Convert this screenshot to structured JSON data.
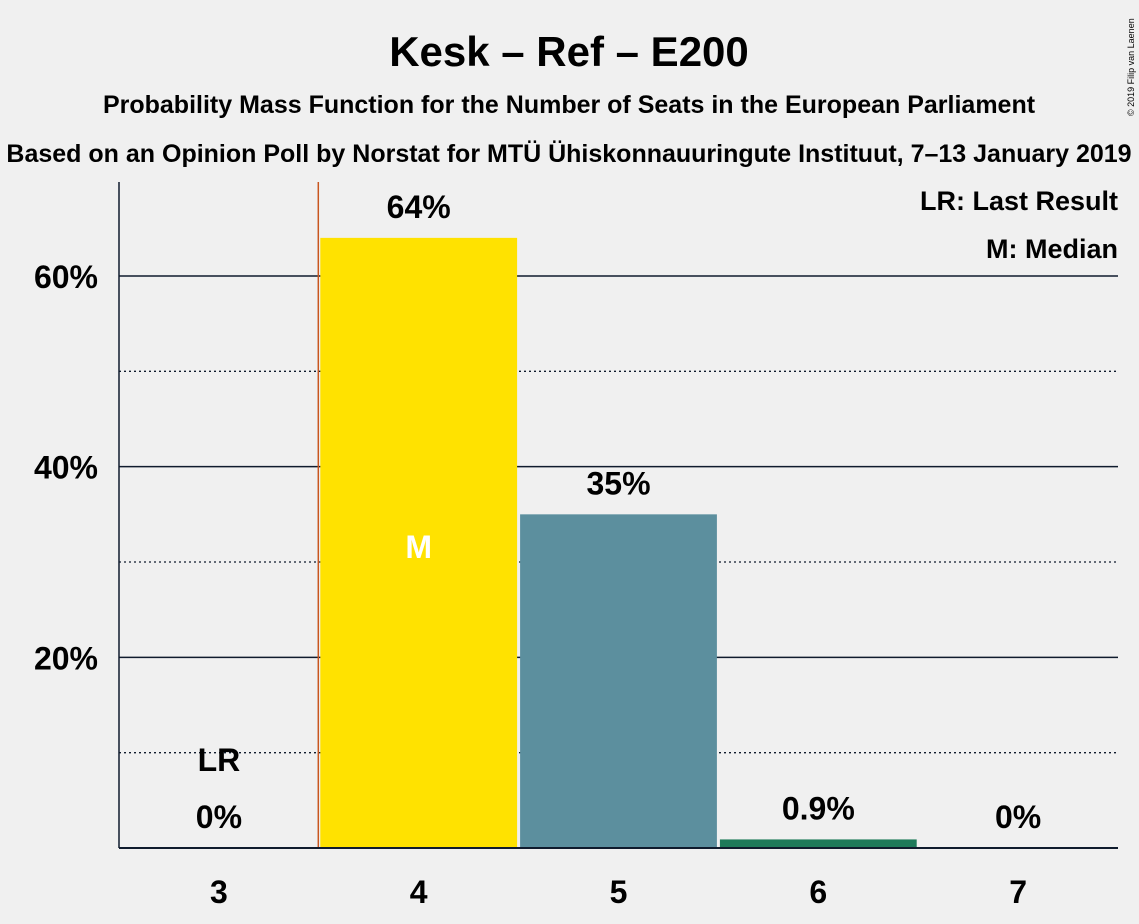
{
  "chart_data": {
    "type": "bar",
    "title": "Kesk – Ref – E200",
    "subtitle": "Probability Mass Function for the Number of Seats in the European Parliament",
    "source": "Based on an Opinion Poll by Norstat for MTÜ Ühiskonnauuringute Instituut, 7–13 January 2019",
    "copyright": "© 2019 Filip van Laenen",
    "categories": [
      "3",
      "4",
      "5",
      "6",
      "7"
    ],
    "values": [
      0,
      64,
      35,
      0.9,
      0
    ],
    "value_labels": [
      "0%",
      "64%",
      "35%",
      "0.9%",
      "0%"
    ],
    "bar_colors": [
      "#5c8f9e",
      "#ffe200",
      "#5c8f9e",
      "#1e7a5a",
      "#5c8f9e"
    ],
    "ylim": [
      0,
      70
    ],
    "yticks": [
      20,
      40,
      60
    ],
    "ytick_labels": [
      "20%",
      "40%",
      "60%"
    ],
    "minor_gridlines": [
      10,
      30,
      50
    ],
    "last_result_category": "3",
    "median_category": "4",
    "last_result_marker": "LR",
    "median_marker": "M",
    "legend": [
      "LR: Last Result",
      "M: Median"
    ],
    "legend_position": "top-right",
    "grid": true,
    "last_result_line_color": "#c8561e"
  }
}
